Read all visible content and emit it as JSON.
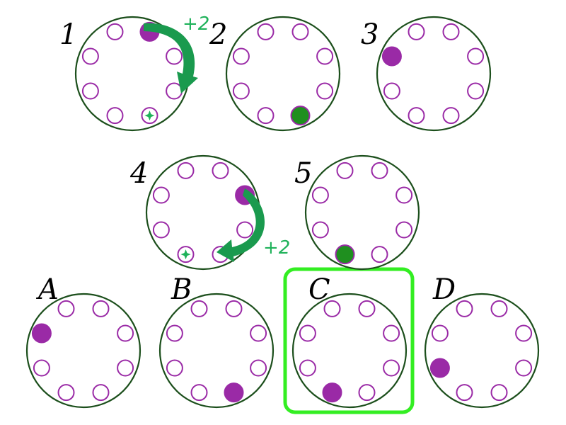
{
  "colors": {
    "ring": "#1c4f1c",
    "slot_outline": "#9a2aa6",
    "filled_purple": "#9a2aa6",
    "filled_green": "#1f8f1f",
    "arrow": "#1a9a4e",
    "step_text": "#1fb25a",
    "highlight": "#33ee22"
  },
  "sequence": [
    {
      "label": "1",
      "filled_position": 0,
      "filled_color": "purple",
      "target_position": 3,
      "step_label": "+2"
    },
    {
      "label": "2",
      "filled_position": 3,
      "filled_color": "green"
    },
    {
      "label": "3",
      "filled_position": 6,
      "filled_color": "purple"
    },
    {
      "label": "4",
      "filled_position": 1,
      "filled_color": "purple",
      "target_position": 4,
      "step_label": "+2"
    },
    {
      "label": "5",
      "filled_position": 4,
      "filled_color": "green"
    }
  ],
  "options": [
    {
      "label": "A",
      "filled_position": 6,
      "selected": false
    },
    {
      "label": "B",
      "filled_position": 3,
      "selected": false
    },
    {
      "label": "C",
      "filled_position": 4,
      "selected": true
    },
    {
      "label": "D",
      "filled_position": 5,
      "selected": false
    }
  ]
}
